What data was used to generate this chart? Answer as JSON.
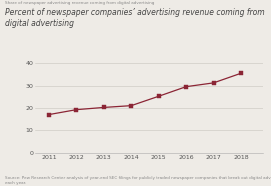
{
  "suptitle": "Share of newspaper advertising revenue coming from digital advertising",
  "title": "Percent of newspaper companies’ advertising revenue coming from\ndigital advertising",
  "years": [
    2011,
    2012,
    2013,
    2014,
    2015,
    2016,
    2017,
    2018
  ],
  "values": [
    17.0,
    19.2,
    20.2,
    21.0,
    25.2,
    29.5,
    31.2,
    35.5
  ],
  "ylim": [
    0,
    40
  ],
  "yticks": [
    0,
    10,
    20,
    30,
    40
  ],
  "line_color": "#8b2535",
  "marker_color": "#8b2535",
  "title_color": "#444444",
  "suptitle_color": "#888888",
  "footnote": "Source: Pew Research Center analysis of year-end SEC filings for publicly traded newspaper companies that break out digital advertising revenue for\neach year.",
  "bg_color": "#eeebe6"
}
